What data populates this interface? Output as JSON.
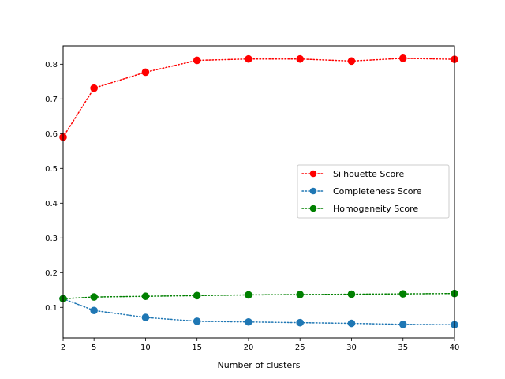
{
  "chart_data": {
    "type": "line",
    "title": "",
    "xlabel": "Number of clusters",
    "ylabel": "",
    "x": [
      2,
      5,
      10,
      15,
      20,
      25,
      30,
      35,
      40
    ],
    "xticks": [
      2,
      5,
      10,
      15,
      20,
      25,
      30,
      35,
      40
    ],
    "yticks": [
      0.1,
      0.2,
      0.3,
      0.4,
      0.5,
      0.6,
      0.7,
      0.8
    ],
    "xlim": [
      2,
      40
    ],
    "ylim": [
      0.012,
      0.853
    ],
    "grid": false,
    "legend_position": "center-right",
    "series": [
      {
        "name": "Silhouette Score",
        "color": "#ff0000",
        "linestyle": "dotted",
        "marker": "circle",
        "values": [
          0.59,
          0.731,
          0.777,
          0.811,
          0.815,
          0.815,
          0.809,
          0.817,
          0.814
        ]
      },
      {
        "name": "Completeness Score",
        "color": "#1f77b4",
        "linestyle": "dotted",
        "marker": "circle",
        "values": [
          0.125,
          0.091,
          0.071,
          0.06,
          0.058,
          0.056,
          0.054,
          0.051,
          0.05
        ]
      },
      {
        "name": "Homogeneity Score",
        "color": "#008000",
        "linestyle": "dotted",
        "marker": "circle",
        "values": [
          0.125,
          0.13,
          0.132,
          0.134,
          0.136,
          0.137,
          0.138,
          0.139,
          0.14
        ]
      }
    ]
  }
}
